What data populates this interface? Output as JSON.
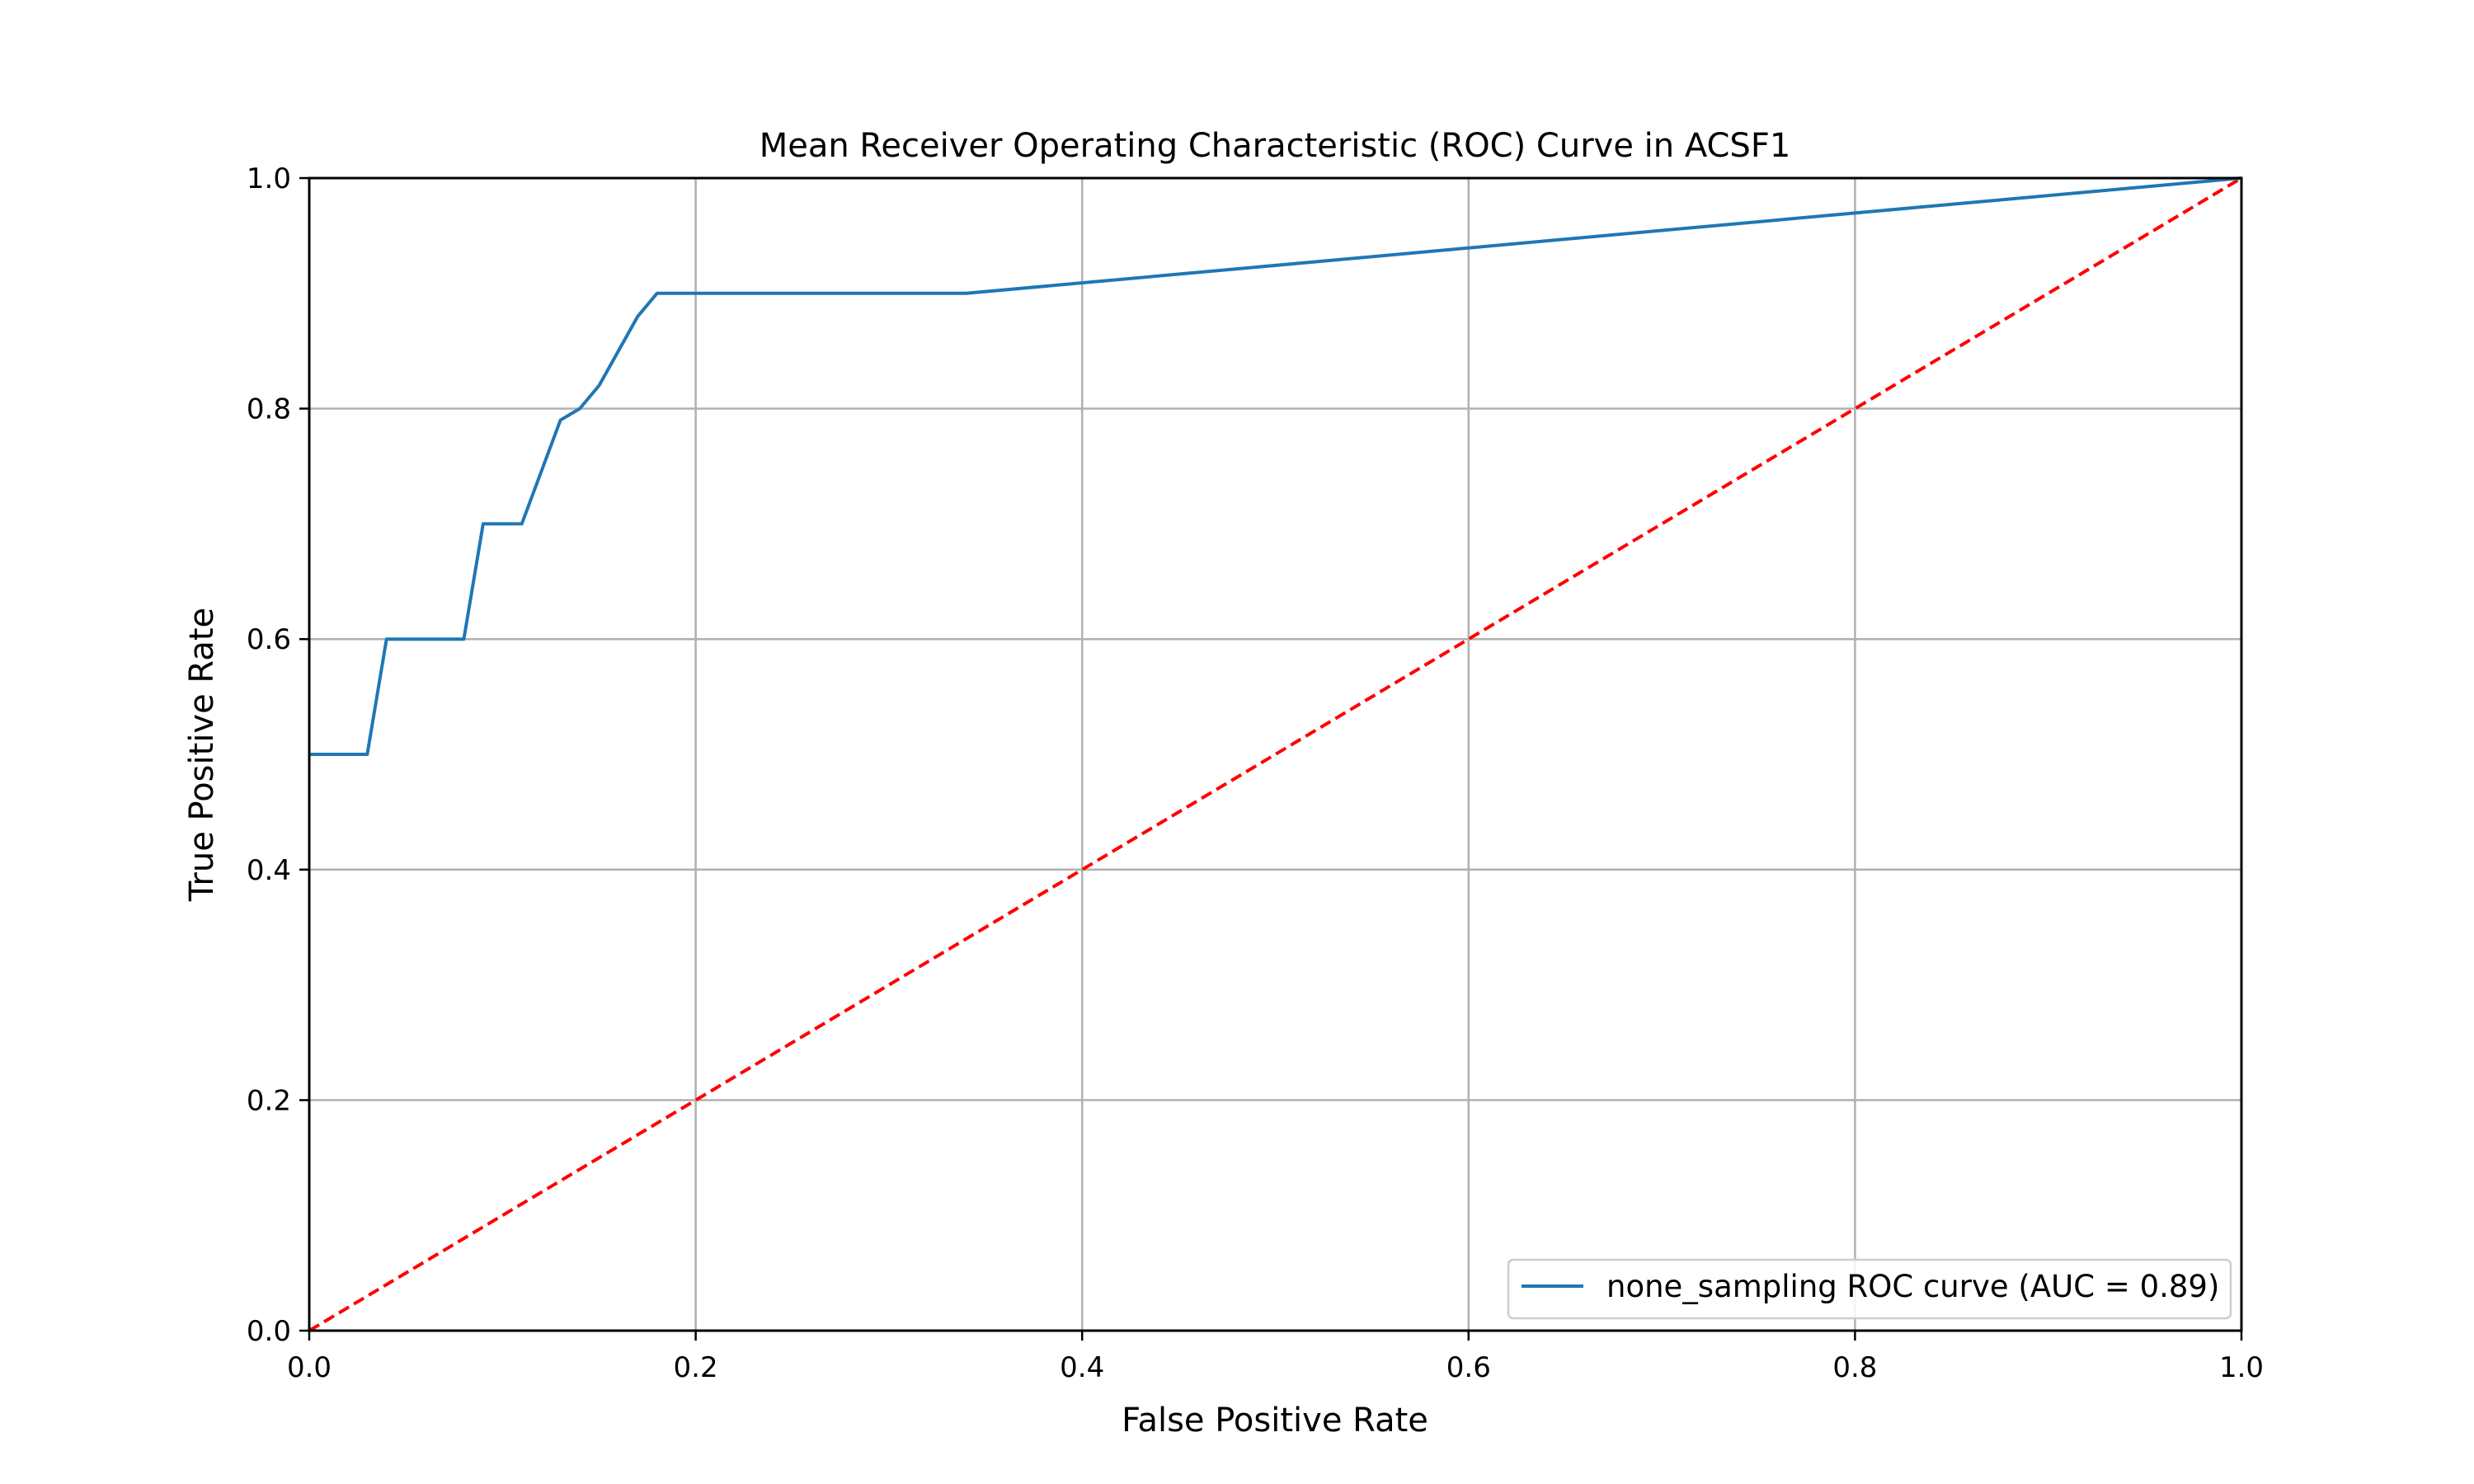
{
  "chart_data": {
    "type": "line",
    "title": "Mean Receiver Operating Characteristic (ROC) Curve in ACSF1",
    "xlabel": "False Positive Rate",
    "ylabel": "True Positive Rate",
    "xlim": [
      0.0,
      1.0
    ],
    "ylim": [
      0.0,
      1.0
    ],
    "xticks": [
      0.0,
      0.2,
      0.4,
      0.6,
      0.8,
      1.0
    ],
    "yticks": [
      0.0,
      0.2,
      0.4,
      0.6,
      0.8,
      1.0
    ],
    "xtick_labels": [
      "0.0",
      "0.2",
      "0.4",
      "0.6",
      "0.8",
      "1.0"
    ],
    "ytick_labels": [
      "0.0",
      "0.2",
      "0.4",
      "0.6",
      "0.8",
      "1.0"
    ],
    "grid": true,
    "legend_position": "bottom-right",
    "series": [
      {
        "name": "none_sampling ROC curve (AUC = 0.89)",
        "color": "#1f77b4",
        "style": "solid",
        "x": [
          0.0,
          0.03,
          0.04,
          0.08,
          0.09,
          0.11,
          0.13,
          0.14,
          0.15,
          0.17,
          0.18,
          0.34,
          1.0
        ],
        "y": [
          0.5,
          0.5,
          0.6,
          0.6,
          0.7,
          0.7,
          0.79,
          0.8,
          0.82,
          0.88,
          0.9,
          0.9,
          1.0
        ]
      },
      {
        "color": "#ff0000",
        "style": "dashed",
        "x": [
          0.0,
          1.0
        ],
        "y": [
          0.0,
          1.0
        ]
      }
    ]
  }
}
